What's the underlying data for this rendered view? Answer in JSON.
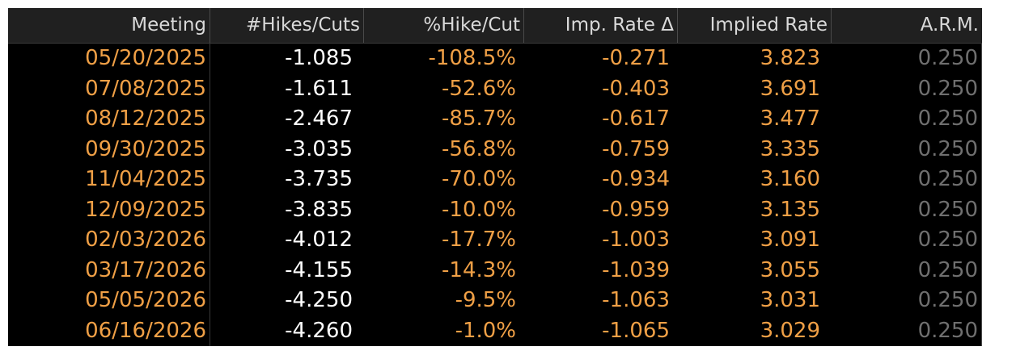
{
  "colors": {
    "background": "#000000",
    "header_bg": "#202020",
    "header_text": "#d9d9d9",
    "accent_orange": "#f0a046",
    "white_values": "#ffffff",
    "muted_gray": "#6f6f6f"
  },
  "table": {
    "headers": [
      "Meeting",
      "#Hikes/Cuts",
      "%Hike/Cut",
      "Imp. Rate Δ",
      "Implied Rate",
      "A.R.M."
    ],
    "rows": [
      [
        "05/20/2025",
        "-1.085",
        "-108.5%",
        "-0.271",
        "3.823",
        "0.250"
      ],
      [
        "07/08/2025",
        "-1.611",
        "-52.6%",
        "-0.403",
        "3.691",
        "0.250"
      ],
      [
        "08/12/2025",
        "-2.467",
        "-85.7%",
        "-0.617",
        "3.477",
        "0.250"
      ],
      [
        "09/30/2025",
        "-3.035",
        "-56.8%",
        "-0.759",
        "3.335",
        "0.250"
      ],
      [
        "11/04/2025",
        "-3.735",
        "-70.0%",
        "-0.934",
        "3.160",
        "0.250"
      ],
      [
        "12/09/2025",
        "-3.835",
        "-10.0%",
        "-0.959",
        "3.135",
        "0.250"
      ],
      [
        "02/03/2026",
        "-4.012",
        "-17.7%",
        "-1.003",
        "3.091",
        "0.250"
      ],
      [
        "03/17/2026",
        "-4.155",
        "-14.3%",
        "-1.039",
        "3.055",
        "0.250"
      ],
      [
        "05/05/2026",
        "-4.250",
        "-9.5%",
        "-1.063",
        "3.031",
        "0.250"
      ],
      [
        "06/16/2026",
        "-4.260",
        "-1.0%",
        "-1.065",
        "3.029",
        "0.250"
      ]
    ]
  }
}
